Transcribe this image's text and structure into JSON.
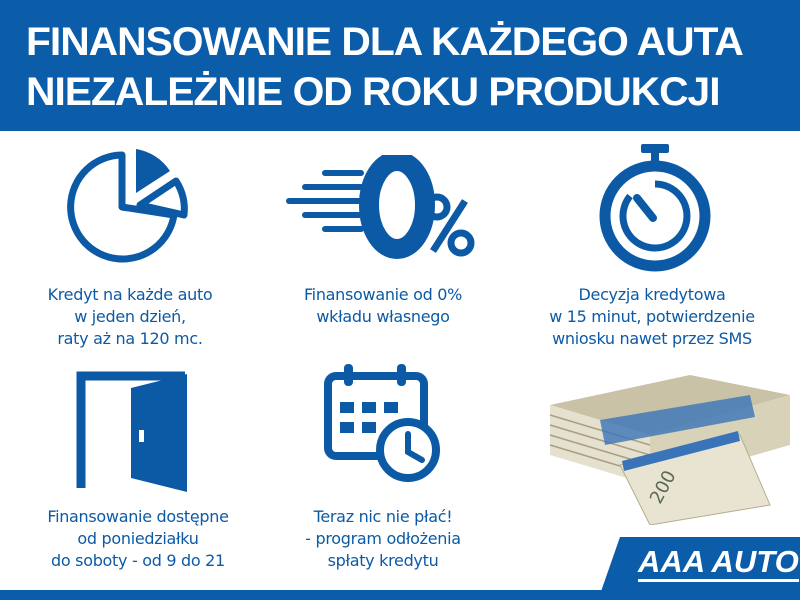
{
  "header": {
    "line1": "FINANSOWANIE DLA KAŻDEGO AUTA",
    "line2": "NIEZALEŻNIE OD ROKU PRODUKCJI"
  },
  "features": [
    {
      "icon": "pie-chart-icon",
      "lines": [
        "Kredyt na każde auto",
        "w jeden dzień,",
        "raty aż na 120 mc."
      ]
    },
    {
      "icon": "zero-percent-icon",
      "lines": [
        "Finansowanie od 0%",
        "wkładu własnego"
      ]
    },
    {
      "icon": "stopwatch-icon",
      "lines": [
        "Decyzja kredytowa",
        "w 15 minut, potwierdzenie",
        "wniosku nawet przez SMS"
      ]
    },
    {
      "icon": "open-door-icon",
      "lines": [
        "Finansowanie dostępne",
        "od poniedziałku",
        "do soboty - od 9 do 21"
      ]
    },
    {
      "icon": "calendar-clock-icon",
      "lines": [
        "Teraz nic nie płać!",
        "- program odłożenia",
        "spłaty kredytu"
      ]
    },
    {
      "icon": "money-stack-icon",
      "lines": []
    }
  ],
  "logo": {
    "text": "AAA AUTO"
  },
  "colors": {
    "brand": "#0b5da9",
    "background": "#ffffff"
  }
}
